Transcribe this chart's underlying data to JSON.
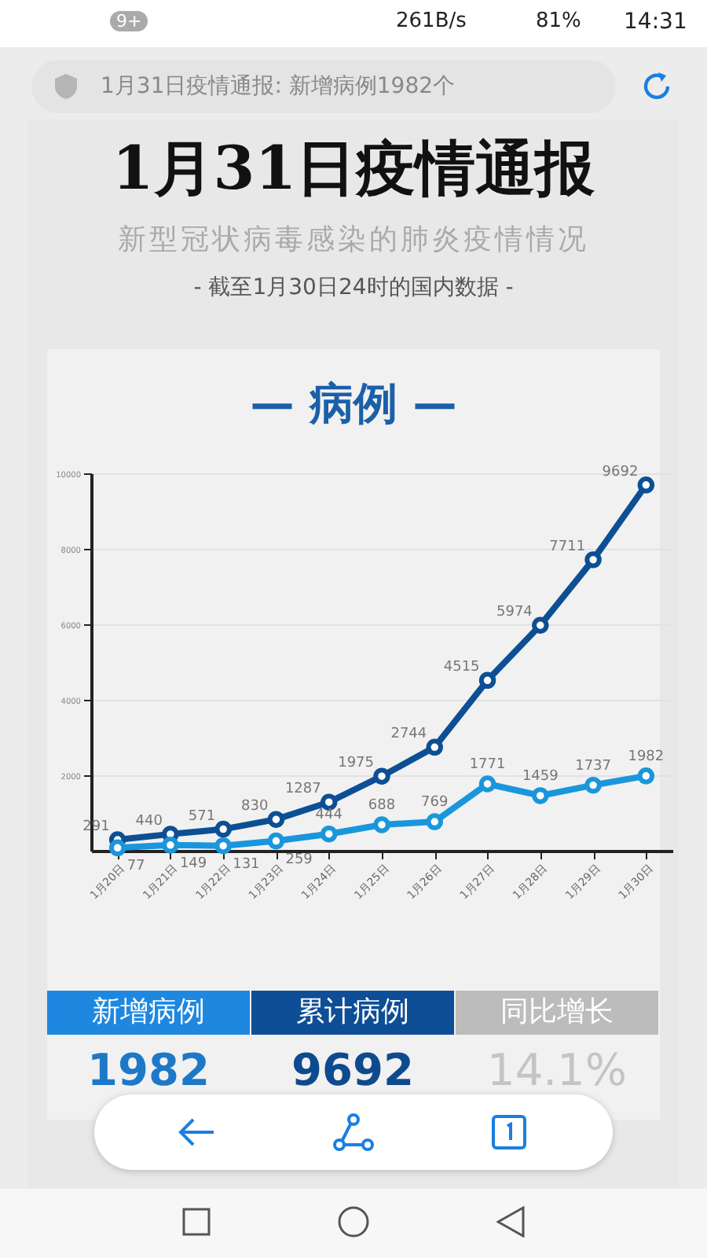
{
  "chart_data": {
    "type": "line",
    "title": "1月31日疫情通报",
    "subtitle": "新型冠状病毒感染的肺炎疫情情况",
    "annotations": [
      "9+",
      "261B/s",
      "81%",
      "14:31",
      "1月31日疫情通报: 新增病例1982个",
      "- 截至1月30日24时的国内数据 -",
      "— 病例 —",
      "新增病例",
      "累计病例",
      "同比增长",
      "1982",
      "9692",
      "14.1%"
    ],
    "categories": [
      "1月20日",
      "1月21日",
      "1月22日",
      "1月23日",
      "1月24日",
      "1月25日",
      "1月26日",
      "1月27日",
      "1月28日",
      "1月29日",
      "1月30日"
    ],
    "series": [
      {
        "color": "#0d4f94",
        "values": [
          291,
          440,
          571,
          830,
          1287,
          1975,
          2744,
          4515,
          5974,
          7711,
          9692
        ]
      },
      {
        "color": "#1a96dc",
        "values": [
          77,
          149,
          131,
          259,
          444,
          688,
          769,
          1771,
          1459,
          1737,
          1982
        ]
      }
    ],
    "ylim": [
      0,
      10000
    ],
    "yticks": [
      2000,
      4000,
      6000,
      8000,
      10000
    ],
    "grid": "y",
    "marker": "circle",
    "line_style": "solid",
    "data_labels": true
  }
}
